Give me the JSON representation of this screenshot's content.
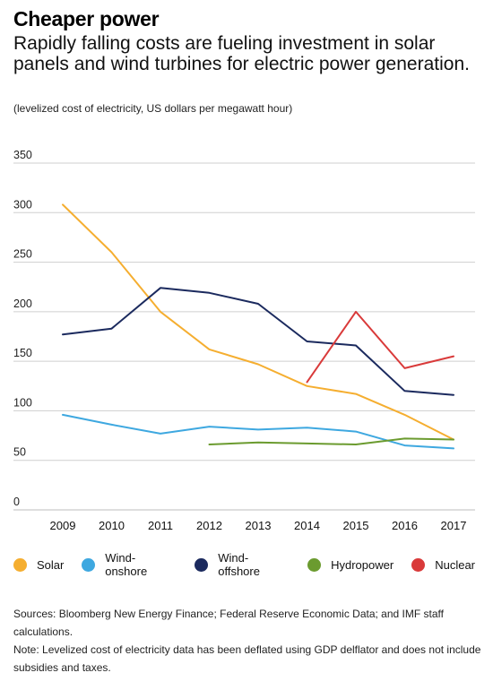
{
  "header": {
    "title": "Cheaper power",
    "subtitle": "Rapidly falling costs are fueling investment in solar panels and wind turbines for electric power generation.",
    "units": "(levelized cost of electricity, US dollars per megawatt hour)"
  },
  "chart_data": {
    "type": "line",
    "x": [
      "2009",
      "2010",
      "2011",
      "2012",
      "2013",
      "2014",
      "2015",
      "2016",
      "2017"
    ],
    "ylim": [
      0,
      350
    ],
    "yticks": [
      0,
      50,
      100,
      150,
      200,
      250,
      300,
      350
    ],
    "grid": true,
    "legend_position": "bottom",
    "series": [
      {
        "name": "Solar",
        "color": "#f5ae30",
        "values": [
          308,
          260,
          200,
          162,
          147,
          125,
          117,
          96,
          71
        ]
      },
      {
        "name": "Wind-onshore",
        "color": "#3ea8e0",
        "values": [
          96,
          86,
          77,
          84,
          81,
          83,
          79,
          65,
          62
        ]
      },
      {
        "name": "Wind-offshore",
        "color": "#1b2a5e",
        "values": [
          177,
          183,
          224,
          219,
          208,
          170,
          166,
          120,
          116
        ]
      },
      {
        "name": "Hydropower",
        "color": "#6b9b2f",
        "values": [
          null,
          null,
          null,
          66,
          68,
          67,
          66,
          72,
          71
        ]
      },
      {
        "name": "Nuclear",
        "color": "#d93a3a",
        "values": [
          null,
          null,
          null,
          null,
          null,
          129,
          200,
          143,
          155
        ]
      }
    ]
  },
  "footer": {
    "sources": "Sources: Bloomberg New Energy Finance; Federal Reserve Economic Data; and IMF staff calculations.",
    "note": "Note: Levelized cost of electricity data has been deflated using GDP delflator and does not include subsidies and taxes."
  }
}
